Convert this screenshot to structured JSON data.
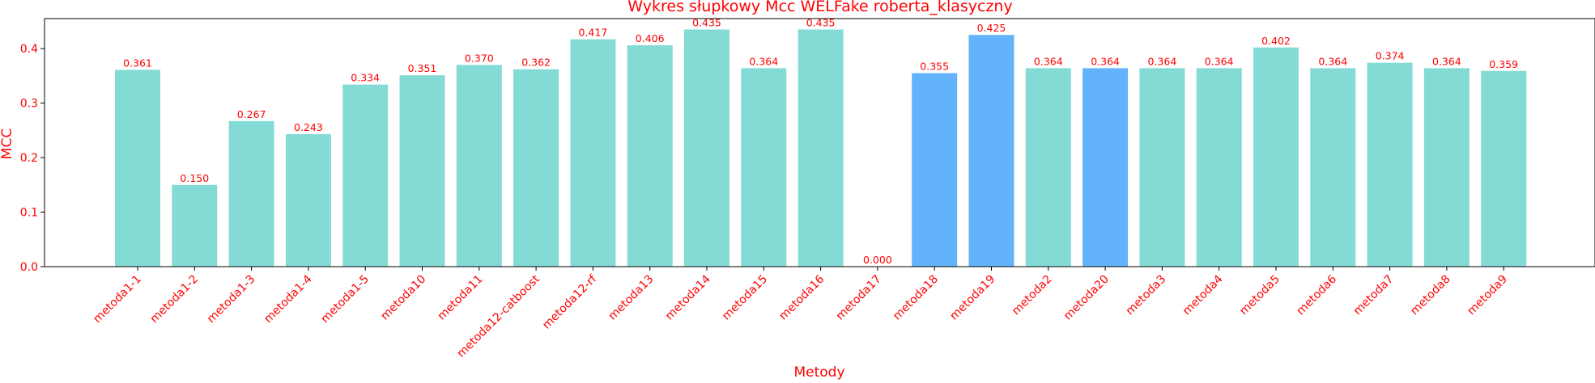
{
  "chart_data": {
    "type": "bar",
    "title": "Wykres słupkowy Mcc WELFake roberta_klasyczny",
    "xlabel": "Metody",
    "ylabel": "MCC",
    "ylim": [
      0,
      0.455
    ],
    "yticks": [
      0.0,
      0.1,
      0.2,
      0.3,
      0.4
    ],
    "ytick_labels": [
      "0.0",
      "0.1",
      "0.2",
      "0.3",
      "0.4"
    ],
    "grid": false,
    "text_color": "#ff0000",
    "categories": [
      "metoda1-1",
      "metoda1-2",
      "metoda1-3",
      "metoda1-4",
      "metoda1-5",
      "metoda10",
      "metoda11",
      "metoda12-catboost",
      "metoda12-rf",
      "metoda13",
      "metoda14",
      "metoda15",
      "metoda16",
      "metoda17",
      "metoda18",
      "metoda19",
      "metoda2",
      "metoda20",
      "metoda3",
      "metoda4",
      "metoda5",
      "metoda6",
      "metoda7",
      "metoda8",
      "metoda9"
    ],
    "values": [
      0.361,
      0.15,
      0.267,
      0.243,
      0.334,
      0.351,
      0.37,
      0.362,
      0.417,
      0.406,
      0.435,
      0.364,
      0.435,
      0.0,
      0.355,
      0.425,
      0.364,
      0.364,
      0.364,
      0.364,
      0.402,
      0.364,
      0.374,
      0.364,
      0.359
    ],
    "value_labels": [
      "0.361",
      "0.150",
      "0.267",
      "0.243",
      "0.334",
      "0.351",
      "0.370",
      "0.362",
      "0.417",
      "0.406",
      "0.435",
      "0.364",
      "0.435",
      "0.000",
      "0.355",
      "0.425",
      "0.364",
      "0.364",
      "0.364",
      "0.364",
      "0.402",
      "0.364",
      "0.374",
      "0.364",
      "0.359"
    ],
    "bar_colors": [
      "#84dbd5",
      "#84dbd5",
      "#84dbd5",
      "#84dbd5",
      "#84dbd5",
      "#84dbd5",
      "#84dbd5",
      "#84dbd5",
      "#84dbd5",
      "#84dbd5",
      "#84dbd5",
      "#84dbd5",
      "#84dbd5",
      "#84dbd5",
      "#62b3fb",
      "#62b3fb",
      "#84dbd5",
      "#62b3fb",
      "#84dbd5",
      "#84dbd5",
      "#84dbd5",
      "#84dbd5",
      "#84dbd5",
      "#84dbd5",
      "#84dbd5"
    ]
  }
}
